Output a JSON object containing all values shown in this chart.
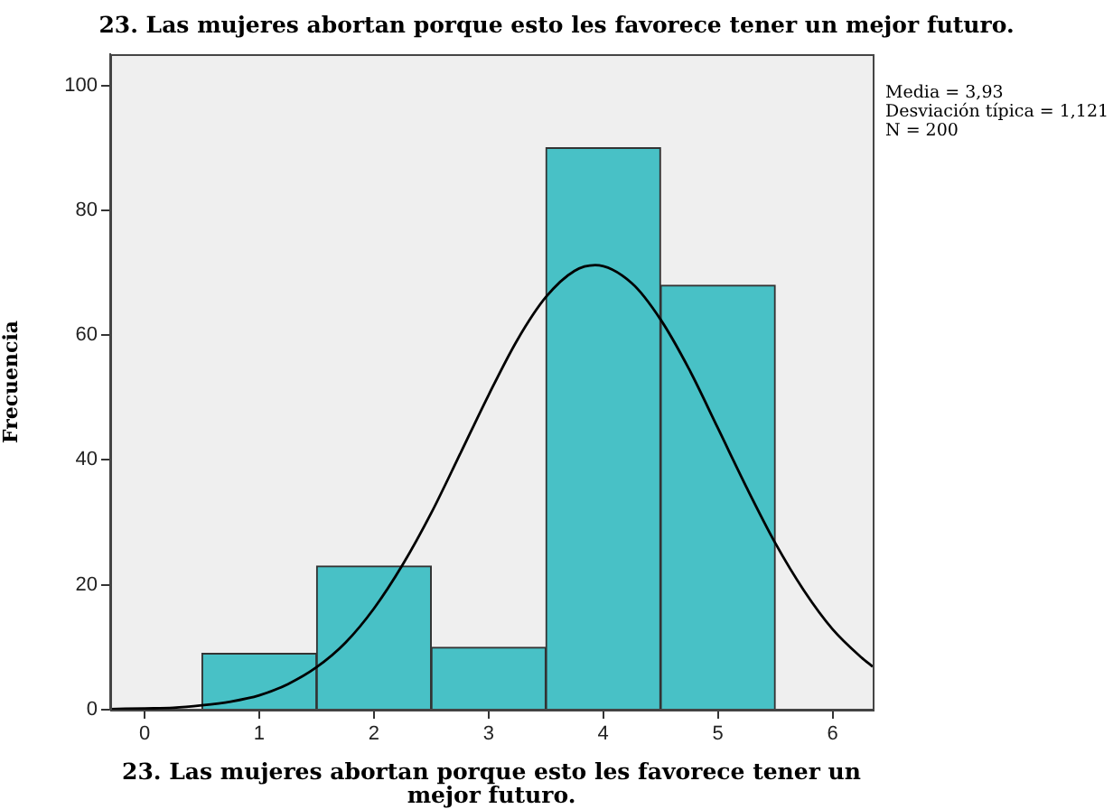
{
  "chart_data": {
    "type": "histogram",
    "title": "23. Las mujeres abortan porque esto les favorece tener un mejor futuro.",
    "xlabel": "23. Las mujeres abortan porque esto les favorece tener un mejor futuro.",
    "ylabel": "Frecuencia",
    "annotations": [
      "Media = 3,93",
      "Desviación típica = 1,121",
      "N = 200"
    ],
    "bins": [
      0.5,
      1.5,
      2.5,
      3.5,
      4.5,
      5.5
    ],
    "series": [
      {
        "color": "#48c1c6",
        "values": [
          9,
          23,
          10,
          90,
          68
        ]
      },
      {
        "type": "line",
        "color": "#000000",
        "x": [
          -0.3,
          0,
          0.25,
          0.5,
          0.75,
          1,
          1.25,
          1.5,
          1.75,
          2,
          2.25,
          2.5,
          2.75,
          3,
          3.25,
          3.5,
          3.75,
          3.93,
          4.25,
          4.5,
          4.75,
          5,
          5.25,
          5.5,
          5.75,
          6,
          6.25,
          6.35
        ],
        "values": [
          0.1,
          0.2,
          0.3,
          0.7,
          1.3,
          2.3,
          4.1,
          6.8,
          10.7,
          16.2,
          23.2,
          31.5,
          40.9,
          50.4,
          59.2,
          66.1,
          70.3,
          71.2,
          68.3,
          62.5,
          54.5,
          45.1,
          35.6,
          26.7,
          19.1,
          12.9,
          8.4,
          6.9
        ]
      }
    ],
    "xlim": [
      -0.3,
      6.35
    ],
    "ylim": [
      0,
      105
    ],
    "xticks": [
      0,
      1,
      2,
      3,
      4,
      5,
      6
    ],
    "yticks": [
      0,
      20,
      40,
      60,
      80,
      100
    ],
    "grid": false,
    "legend": false,
    "marker": "none"
  }
}
